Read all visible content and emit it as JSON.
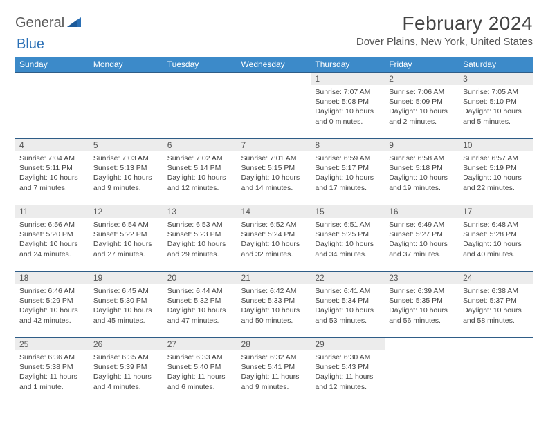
{
  "logo": {
    "general": "General",
    "blue": "Blue"
  },
  "title": "February 2024",
  "location": "Dover Plains, New York, United States",
  "colors": {
    "header_bg": "#3c8ac9",
    "header_text": "#ffffff",
    "row_border": "#2f5d87",
    "daynum_bg": "#ececec",
    "logo_blue": "#2a6fb5",
    "logo_grey": "#5a5a5a"
  },
  "day_names": [
    "Sunday",
    "Monday",
    "Tuesday",
    "Wednesday",
    "Thursday",
    "Friday",
    "Saturday"
  ],
  "weeks": [
    [
      {
        "empty": true
      },
      {
        "empty": true
      },
      {
        "empty": true
      },
      {
        "empty": true
      },
      {
        "num": "1",
        "sunrise": "7:07 AM",
        "sunset": "5:08 PM",
        "daylight": "10 hours and 0 minutes."
      },
      {
        "num": "2",
        "sunrise": "7:06 AM",
        "sunset": "5:09 PM",
        "daylight": "10 hours and 2 minutes."
      },
      {
        "num": "3",
        "sunrise": "7:05 AM",
        "sunset": "5:10 PM",
        "daylight": "10 hours and 5 minutes."
      }
    ],
    [
      {
        "num": "4",
        "sunrise": "7:04 AM",
        "sunset": "5:11 PM",
        "daylight": "10 hours and 7 minutes."
      },
      {
        "num": "5",
        "sunrise": "7:03 AM",
        "sunset": "5:13 PM",
        "daylight": "10 hours and 9 minutes."
      },
      {
        "num": "6",
        "sunrise": "7:02 AM",
        "sunset": "5:14 PM",
        "daylight": "10 hours and 12 minutes."
      },
      {
        "num": "7",
        "sunrise": "7:01 AM",
        "sunset": "5:15 PM",
        "daylight": "10 hours and 14 minutes."
      },
      {
        "num": "8",
        "sunrise": "6:59 AM",
        "sunset": "5:17 PM",
        "daylight": "10 hours and 17 minutes."
      },
      {
        "num": "9",
        "sunrise": "6:58 AM",
        "sunset": "5:18 PM",
        "daylight": "10 hours and 19 minutes."
      },
      {
        "num": "10",
        "sunrise": "6:57 AM",
        "sunset": "5:19 PM",
        "daylight": "10 hours and 22 minutes."
      }
    ],
    [
      {
        "num": "11",
        "sunrise": "6:56 AM",
        "sunset": "5:20 PM",
        "daylight": "10 hours and 24 minutes."
      },
      {
        "num": "12",
        "sunrise": "6:54 AM",
        "sunset": "5:22 PM",
        "daylight": "10 hours and 27 minutes."
      },
      {
        "num": "13",
        "sunrise": "6:53 AM",
        "sunset": "5:23 PM",
        "daylight": "10 hours and 29 minutes."
      },
      {
        "num": "14",
        "sunrise": "6:52 AM",
        "sunset": "5:24 PM",
        "daylight": "10 hours and 32 minutes."
      },
      {
        "num": "15",
        "sunrise": "6:51 AM",
        "sunset": "5:25 PM",
        "daylight": "10 hours and 34 minutes."
      },
      {
        "num": "16",
        "sunrise": "6:49 AM",
        "sunset": "5:27 PM",
        "daylight": "10 hours and 37 minutes."
      },
      {
        "num": "17",
        "sunrise": "6:48 AM",
        "sunset": "5:28 PM",
        "daylight": "10 hours and 40 minutes."
      }
    ],
    [
      {
        "num": "18",
        "sunrise": "6:46 AM",
        "sunset": "5:29 PM",
        "daylight": "10 hours and 42 minutes."
      },
      {
        "num": "19",
        "sunrise": "6:45 AM",
        "sunset": "5:30 PM",
        "daylight": "10 hours and 45 minutes."
      },
      {
        "num": "20",
        "sunrise": "6:44 AM",
        "sunset": "5:32 PM",
        "daylight": "10 hours and 47 minutes."
      },
      {
        "num": "21",
        "sunrise": "6:42 AM",
        "sunset": "5:33 PM",
        "daylight": "10 hours and 50 minutes."
      },
      {
        "num": "22",
        "sunrise": "6:41 AM",
        "sunset": "5:34 PM",
        "daylight": "10 hours and 53 minutes."
      },
      {
        "num": "23",
        "sunrise": "6:39 AM",
        "sunset": "5:35 PM",
        "daylight": "10 hours and 56 minutes."
      },
      {
        "num": "24",
        "sunrise": "6:38 AM",
        "sunset": "5:37 PM",
        "daylight": "10 hours and 58 minutes."
      }
    ],
    [
      {
        "num": "25",
        "sunrise": "6:36 AM",
        "sunset": "5:38 PM",
        "daylight": "11 hours and 1 minute."
      },
      {
        "num": "26",
        "sunrise": "6:35 AM",
        "sunset": "5:39 PM",
        "daylight": "11 hours and 4 minutes."
      },
      {
        "num": "27",
        "sunrise": "6:33 AM",
        "sunset": "5:40 PM",
        "daylight": "11 hours and 6 minutes."
      },
      {
        "num": "28",
        "sunrise": "6:32 AM",
        "sunset": "5:41 PM",
        "daylight": "11 hours and 9 minutes."
      },
      {
        "num": "29",
        "sunrise": "6:30 AM",
        "sunset": "5:43 PM",
        "daylight": "11 hours and 12 minutes."
      },
      {
        "empty": true
      },
      {
        "empty": true
      }
    ]
  ],
  "labels": {
    "sunrise": "Sunrise:",
    "sunset": "Sunset:",
    "daylight": "Daylight:"
  }
}
